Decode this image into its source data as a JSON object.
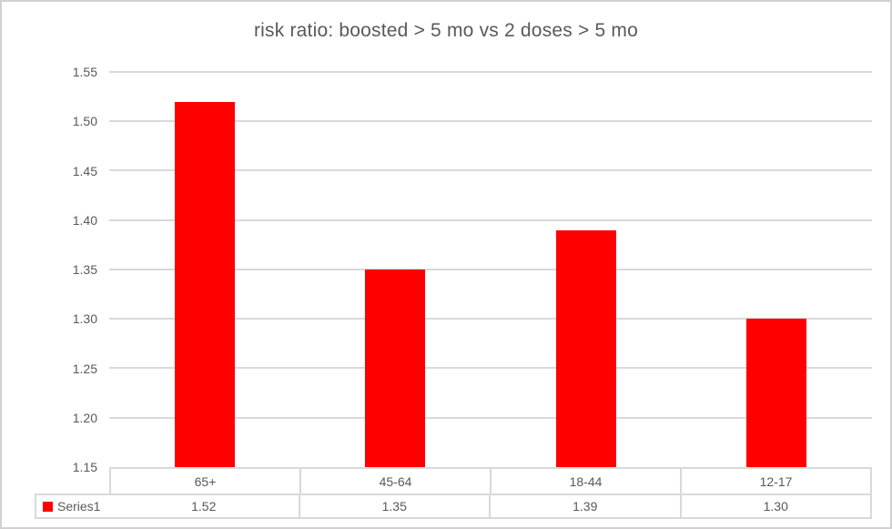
{
  "chart_data": {
    "type": "bar",
    "title": "risk ratio: boosted > 5 mo vs 2 doses > 5 mo",
    "categories": [
      "65+",
      "45-64",
      "18-44",
      "12-17"
    ],
    "series": [
      {
        "name": "Series1",
        "values": [
          1.52,
          1.35,
          1.39,
          1.3
        ],
        "value_labels": [
          "1.52",
          "1.35",
          "1.39",
          "1.30"
        ],
        "color": "#ff0000"
      }
    ],
    "xlabel": "",
    "ylabel": "",
    "ylim": [
      1.15,
      1.55
    ],
    "ytick_step": 0.05,
    "ytick_labels": [
      "1.15",
      "1.20",
      "1.25",
      "1.30",
      "1.35",
      "1.40",
      "1.45",
      "1.50",
      "1.55"
    ],
    "grid": true,
    "gridline_color": "#d9d9d9",
    "text_color": "#595959",
    "legend_position": "data-table-left"
  }
}
